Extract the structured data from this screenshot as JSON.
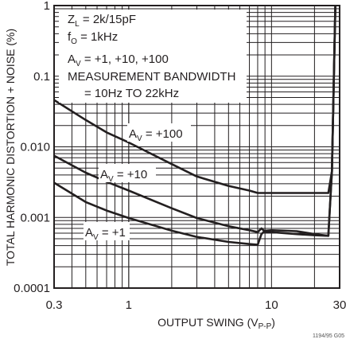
{
  "chart_data": {
    "type": "line",
    "xlabel_main": "OUTPUT SWING (V",
    "xlabel_sub": "P-P",
    "xlabel_close": ")",
    "ylabel": "TOTAL HARMONIC DISTORTION + NOISE (%)",
    "xscale": "log",
    "yscale": "log",
    "xlim": [
      0.3,
      30
    ],
    "ylim": [
      0.0001,
      1
    ],
    "grid": true,
    "x_ticks": [
      {
        "value": 0.3,
        "label": "0.3"
      },
      {
        "value": 1,
        "label": "1"
      },
      {
        "value": 10,
        "label": "10"
      },
      {
        "value": 30,
        "label": "30"
      }
    ],
    "y_ticks": [
      {
        "value": 1,
        "label": "1"
      },
      {
        "value": 0.1,
        "label": "0.1"
      },
      {
        "value": 0.01,
        "label": "0.010"
      },
      {
        "value": 0.001,
        "label": "0.001"
      },
      {
        "value": 0.0001,
        "label": "0.0001"
      }
    ],
    "notes": {
      "zl_main": "Z",
      "zl_sub": "L",
      "zl_rest": " = 2k/15pF",
      "fo_main": "f",
      "fo_sub": "O",
      "fo_rest": " = 1kHz",
      "av_main": "A",
      "av_sub": "V",
      "av_rest": " = +1, +10, +100",
      "bw_line1": "MEASUREMENT BANDWIDTH",
      "bw_line2": "= 10Hz TO 22kHz"
    },
    "series": [
      {
        "name_main": "A",
        "name_sub": "V",
        "name_rest": " = +100",
        "points": [
          [
            0.3,
            0.046
          ],
          [
            0.5,
            0.024
          ],
          [
            0.7,
            0.016
          ],
          [
            1,
            0.0115
          ],
          [
            2,
            0.0057
          ],
          [
            3,
            0.0038
          ],
          [
            5,
            0.0028
          ],
          [
            7,
            0.0024
          ],
          [
            8,
            0.00222
          ],
          [
            10,
            0.00222
          ],
          [
            20,
            0.00222
          ],
          [
            25,
            0.00222
          ],
          [
            26.5,
            0.0045
          ],
          [
            28,
            1
          ]
        ]
      },
      {
        "name_main": "A",
        "name_sub": "V",
        "name_rest": " = +10",
        "points": [
          [
            0.3,
            0.0075
          ],
          [
            0.5,
            0.0043
          ],
          [
            0.7,
            0.0032
          ],
          [
            1,
            0.0024
          ],
          [
            2,
            0.00135
          ],
          [
            3,
            0.00098
          ],
          [
            5,
            0.00075
          ],
          [
            7,
            0.00066
          ],
          [
            8,
            0.00062
          ],
          [
            8.5,
            0.0007
          ],
          [
            9,
            0.00063
          ],
          [
            10,
            0.00062
          ],
          [
            15,
            0.00058
          ],
          [
            20,
            0.00056
          ],
          [
            25,
            0.00055
          ],
          [
            26.5,
            0.0045
          ],
          [
            28,
            1
          ]
        ]
      },
      {
        "name_main": "A",
        "name_sub": "V",
        "name_rest": " = +1",
        "points": [
          [
            0.3,
            0.0031
          ],
          [
            0.5,
            0.00165
          ],
          [
            0.7,
            0.00125
          ],
          [
            1,
            0.00098
          ],
          [
            2,
            0.00065
          ],
          [
            3,
            0.00053
          ],
          [
            5,
            0.00045
          ],
          [
            7,
            0.00042
          ],
          [
            8,
            0.00041
          ],
          [
            8.5,
            0.00058
          ],
          [
            9,
            0.00065
          ],
          [
            10,
            0.00066
          ],
          [
            15,
            0.00064
          ],
          [
            20,
            0.00058
          ],
          [
            25,
            0.00055
          ],
          [
            26.5,
            0.0045
          ],
          [
            28,
            1
          ]
        ]
      }
    ],
    "figure_code": "1194/95 G05"
  }
}
